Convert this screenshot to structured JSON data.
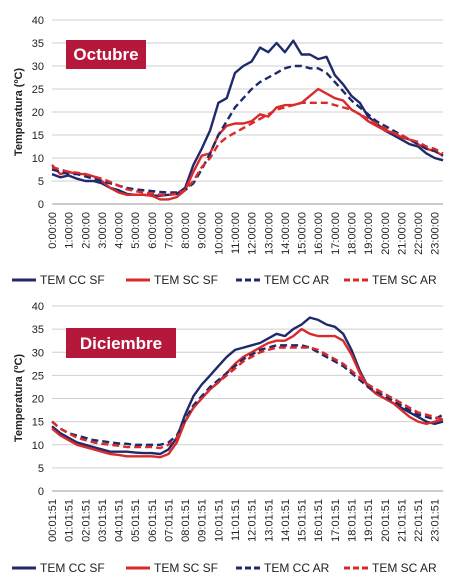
{
  "colors": {
    "dark_blue": "#1f2a6b",
    "red": "#d92b2b",
    "badge": "#b5183a"
  },
  "chart_data": [
    {
      "type": "line",
      "title": "Octubre",
      "ylabel": "Temperatura (ºC)",
      "ylim": [
        0,
        40
      ],
      "yticks": [
        0,
        5,
        10,
        15,
        20,
        25,
        30,
        35,
        40
      ],
      "categories": [
        "0:00:00",
        "1:00:00",
        "2:00:00",
        "3:00:00",
        "4:00:00",
        "5:00:00",
        "6:00:00",
        "7:00:00",
        "8:00:00",
        "9:00:00",
        "10:00:00",
        "11:00:00",
        "12:00:00",
        "13:00:00",
        "14:00:00",
        "15:00:00",
        "16:00:00",
        "17:00:00",
        "18:00:00",
        "19:00:00",
        "20:00:00",
        "21:00:00",
        "22:00:00",
        "23:00:00"
      ],
      "x": [
        0,
        0.5,
        1,
        1.5,
        2,
        2.5,
        3,
        3.5,
        4,
        4.5,
        5,
        5.5,
        6,
        6.5,
        7,
        7.5,
        8,
        8.5,
        9,
        9.5,
        10,
        10.5,
        11,
        11.5,
        12,
        12.5,
        13,
        13.5,
        14,
        14.5,
        15,
        15.5,
        16,
        16.5,
        17,
        17.5,
        18,
        18.5,
        19,
        19.5,
        20,
        20.5,
        21,
        21.5,
        22,
        22.5,
        23,
        23.5
      ],
      "series": [
        {
          "name": "TEM CC SF",
          "color": "#1f2a6b",
          "dash": false,
          "values": [
            6.5,
            5.8,
            6.2,
            5.5,
            5,
            5,
            4.5,
            3.5,
            3,
            2.2,
            2,
            2,
            1.8,
            1.8,
            2,
            2.2,
            3.5,
            8.5,
            12,
            16,
            22,
            23,
            28.5,
            30,
            31,
            34,
            33,
            35,
            33,
            35.5,
            32.5,
            32.5,
            31.5,
            32,
            28,
            26,
            23.5,
            22,
            19,
            17.5,
            16,
            15,
            14,
            13,
            12.5,
            11,
            10,
            9.5
          ]
        },
        {
          "name": "TEM SC SF",
          "color": "#d92b2b",
          "dash": false,
          "values": [
            8.5,
            6.5,
            7,
            6.5,
            6.5,
            6,
            5,
            3.5,
            2.5,
            2,
            2,
            2,
            1.8,
            1,
            1,
            1.5,
            3,
            7,
            10.5,
            11,
            15,
            17,
            17.5,
            17.5,
            18,
            19.5,
            19,
            21,
            21.5,
            21.5,
            22,
            23.5,
            25,
            24,
            23,
            22.5,
            20.5,
            19.5,
            18,
            17,
            16,
            15.5,
            14.5,
            14,
            13,
            12,
            11.5,
            10.5
          ]
        },
        {
          "name": "TEM CC AR",
          "color": "#1f2a6b",
          "dash": true,
          "values": [
            7.5,
            7,
            6.5,
            6.5,
            6,
            5.5,
            5,
            4.5,
            4,
            3.5,
            3.2,
            3,
            2.8,
            2.6,
            2.5,
            2.5,
            3,
            4.5,
            7.5,
            11,
            15,
            18,
            21,
            23,
            25,
            26.5,
            27.5,
            28.5,
            29.5,
            30,
            30,
            29.5,
            29.5,
            28.5,
            26.5,
            24.5,
            22.5,
            21,
            19.5,
            18,
            17,
            16,
            15,
            14,
            13,
            12,
            11.5,
            10.5
          ]
        },
        {
          "name": "TEM SC AR",
          "color": "#d92b2b",
          "dash": true,
          "values": [
            8,
            7.5,
            7,
            6.8,
            6.5,
            6,
            5.5,
            4.8,
            4,
            3.2,
            2.8,
            2.5,
            2.3,
            2,
            2,
            2.2,
            3,
            5,
            8,
            10,
            13,
            14.5,
            15.5,
            16.5,
            17.5,
            18.5,
            19.5,
            20.5,
            21,
            21.5,
            22,
            22,
            22,
            22,
            21.5,
            21,
            20.5,
            19.5,
            18.5,
            17.5,
            16.5,
            15.5,
            15,
            14,
            13.5,
            12.5,
            12,
            11
          ]
        }
      ]
    },
    {
      "type": "line",
      "title": "Diciembre",
      "ylabel": "Temperatura (ºC)",
      "ylim": [
        0,
        40
      ],
      "yticks": [
        0,
        5,
        10,
        15,
        20,
        25,
        30,
        35,
        40
      ],
      "categories": [
        "00:01:51",
        "01:01:51",
        "02:01:51",
        "03:01:51",
        "04:01:51",
        "05:01:51",
        "06:01:51",
        "07:01:51",
        "08:01:51",
        "09:01:51",
        "10:01:51",
        "11:01:51",
        "12:01:51",
        "13:01:51",
        "14:01:51",
        "15:01:51",
        "16:01:51",
        "17:01:51",
        "18:01:51",
        "19:01:51",
        "20:01:51",
        "21:01:51",
        "22:01:51",
        "23:01:51"
      ],
      "x": [
        0,
        0.5,
        1,
        1.5,
        2,
        2.5,
        3,
        3.5,
        4,
        4.5,
        5,
        5.5,
        6,
        6.5,
        7,
        7.5,
        8,
        8.5,
        9,
        9.5,
        10,
        10.5,
        11,
        11.5,
        12,
        12.5,
        13,
        13.5,
        14,
        14.5,
        15,
        15.5,
        16,
        16.5,
        17,
        17.5,
        18,
        18.5,
        19,
        19.5,
        20,
        20.5,
        21,
        21.5,
        22,
        22.5,
        23,
        23.5
      ],
      "series": [
        {
          "name": "TEM CC SF",
          "color": "#1f2a6b",
          "dash": false,
          "values": [
            14,
            12.5,
            11.5,
            10.5,
            10,
            9.5,
            9,
            8.5,
            8.5,
            8.5,
            8.3,
            8.2,
            8.2,
            8,
            9,
            11.5,
            16.5,
            20.5,
            23,
            25,
            27,
            29,
            30.5,
            31,
            31.5,
            32,
            33,
            34,
            33.5,
            35,
            36,
            37.5,
            37,
            36,
            35.5,
            34,
            30.5,
            26,
            22.5,
            21,
            20,
            19,
            18,
            17,
            16,
            15,
            14.5,
            15
          ]
        },
        {
          "name": "TEM SC SF",
          "color": "#d92b2b",
          "dash": false,
          "values": [
            13.5,
            12,
            11,
            10,
            9.5,
            9,
            8.5,
            8,
            7.8,
            7.5,
            7.5,
            7.5,
            7.5,
            7.3,
            8,
            10.5,
            15,
            18,
            20,
            22,
            23.5,
            25.5,
            27.5,
            29,
            30,
            31,
            32,
            32.5,
            32.5,
            33.5,
            35,
            34,
            33.5,
            33.5,
            33.5,
            32.5,
            29.5,
            25.5,
            22.5,
            21,
            20,
            19,
            17.5,
            16,
            15,
            14.5,
            15,
            15.5
          ]
        },
        {
          "name": "TEM CC AR",
          "color": "#1f2a6b",
          "dash": true,
          "values": [
            15,
            13.5,
            12.5,
            12,
            11.5,
            11,
            10.8,
            10.5,
            10.3,
            10.2,
            10,
            10,
            10,
            10,
            10.5,
            12,
            15.5,
            18.5,
            20.5,
            22.5,
            24,
            25.5,
            27,
            28.5,
            29.5,
            30.5,
            31,
            31.5,
            31.5,
            31.5,
            31.5,
            31,
            30,
            29,
            28,
            27,
            25.5,
            24,
            22.5,
            21.5,
            20.5,
            19.5,
            18.5,
            17.5,
            16.5,
            16,
            15.5,
            16.5
          ]
        },
        {
          "name": "TEM SC AR",
          "color": "#d92b2b",
          "dash": true,
          "values": [
            15,
            13.5,
            12.5,
            11.5,
            11,
            10.5,
            10.2,
            10,
            9.8,
            9.5,
            9.5,
            9.5,
            9.5,
            9.3,
            10,
            11.5,
            15,
            18,
            20,
            22,
            23.5,
            25,
            26.5,
            28,
            29,
            30,
            30.5,
            31,
            31,
            31,
            31,
            31,
            30.5,
            29.5,
            28.5,
            27.5,
            26,
            24.5,
            23,
            22,
            21,
            20,
            19,
            18,
            17,
            16.5,
            16,
            15.5
          ]
        }
      ]
    }
  ]
}
